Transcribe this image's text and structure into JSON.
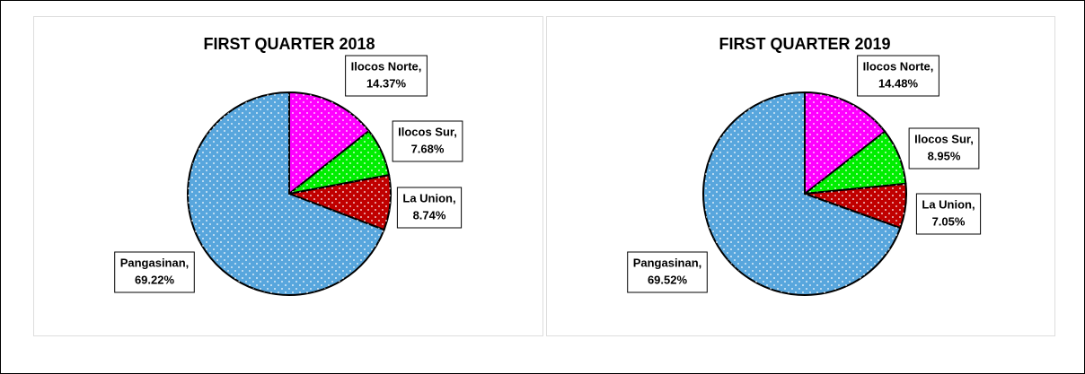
{
  "chart_data": [
    {
      "type": "pie",
      "title": "FIRST QUARTER 2018",
      "categories": [
        "Ilocos Norte,",
        "Ilocos Sur,",
        "La Union,",
        "Pangasinan,"
      ],
      "values": [
        14.37,
        7.68,
        8.74,
        69.22
      ],
      "value_labels": [
        "14.37%",
        "7.68%",
        "8.74%",
        "69.22%"
      ],
      "colors": [
        "#ff00ff",
        "#00ee00",
        "#c00000",
        "#58a6dd"
      ]
    },
    {
      "type": "pie",
      "title": "FIRST QUARTER 2019",
      "categories": [
        "Ilocos Norte,",
        "Ilocos Sur,",
        "La Union,",
        "Pangasinan,"
      ],
      "values": [
        14.48,
        8.95,
        7.05,
        69.52
      ],
      "value_labels": [
        "14.48%",
        "8.95%",
        "7.05%",
        "69.52%"
      ],
      "colors": [
        "#ff00ff",
        "#00ee00",
        "#c00000",
        "#58a6dd"
      ]
    }
  ]
}
